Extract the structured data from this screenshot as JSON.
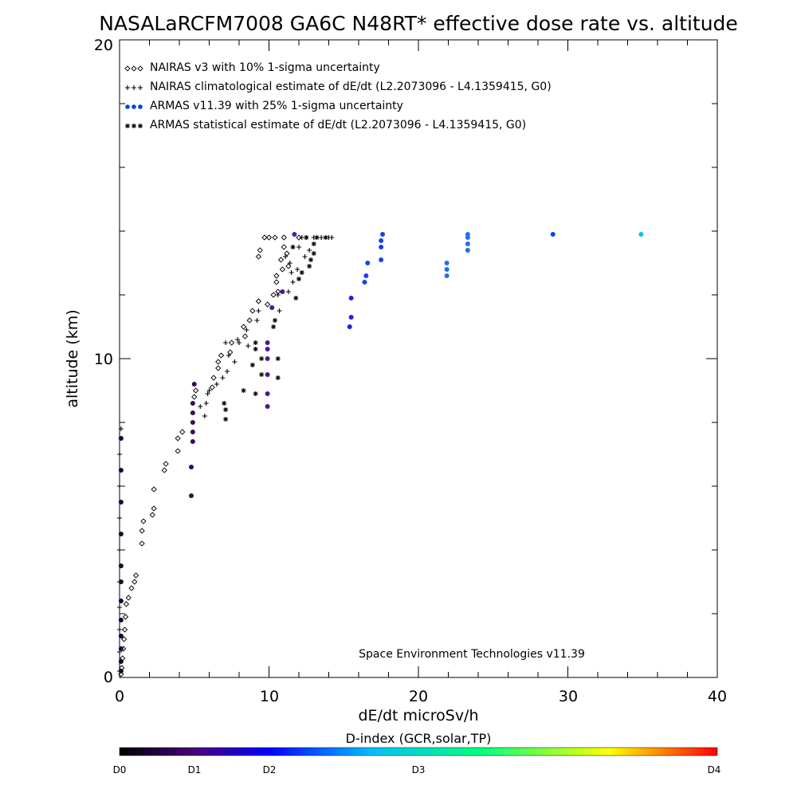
{
  "chart_data": {
    "type": "scatter",
    "title": "NASALaRCFM7008  GA6C N48RT* effective dose rate vs. altitude",
    "xlabel": "dE/dt microSv/h",
    "ylabel": "altitude (km)",
    "xlim": [
      0,
      40
    ],
    "ylim": [
      0,
      20
    ],
    "x_ticks": [
      "0",
      "10",
      "20",
      "30",
      "40"
    ],
    "y_ticks": [
      "0",
      "10",
      "20"
    ],
    "legend_position": "top-left",
    "credit": "Space Environment Technologies v11.39",
    "series": [
      {
        "name": "NAIRAS v3 with 10% 1-sigma uncertainty",
        "marker": "diamond",
        "color": "#000000",
        "points": [
          [
            0.1,
            0.1
          ],
          [
            0.15,
            0.3
          ],
          [
            0.2,
            0.6
          ],
          [
            0.25,
            0.9
          ],
          [
            0.3,
            1.2
          ],
          [
            0.35,
            1.5
          ],
          [
            0.4,
            1.9
          ],
          [
            0.45,
            2.3
          ],
          [
            0.6,
            2.5
          ],
          [
            0.8,
            2.8
          ],
          [
            1.0,
            3.0
          ],
          [
            1.1,
            3.2
          ],
          [
            1.5,
            4.2
          ],
          [
            1.5,
            4.6
          ],
          [
            1.6,
            4.9
          ],
          [
            2.2,
            5.1
          ],
          [
            2.3,
            5.3
          ],
          [
            2.3,
            5.9
          ],
          [
            3.0,
            6.5
          ],
          [
            3.1,
            6.7
          ],
          [
            3.9,
            7.1
          ],
          [
            3.9,
            7.5
          ],
          [
            4.2,
            7.7
          ],
          [
            5.0,
            8.8
          ],
          [
            5.1,
            9.0
          ],
          [
            6.2,
            9.1
          ],
          [
            6.3,
            9.4
          ],
          [
            6.6,
            9.7
          ],
          [
            6.6,
            9.9
          ],
          [
            6.8,
            10.1
          ],
          [
            7.4,
            10.2
          ],
          [
            7.5,
            10.5
          ],
          [
            8.4,
            10.7
          ],
          [
            8.3,
            11.0
          ],
          [
            8.7,
            11.2
          ],
          [
            8.9,
            11.5
          ],
          [
            9.3,
            11.8
          ],
          [
            9.9,
            11.7
          ],
          [
            10.3,
            12.0
          ],
          [
            10.6,
            12.1
          ],
          [
            10.5,
            12.4
          ],
          [
            10.5,
            12.6
          ],
          [
            10.9,
            12.8
          ],
          [
            11.3,
            12.9
          ],
          [
            10.8,
            13.1
          ],
          [
            9.3,
            13.2
          ],
          [
            9.4,
            13.4
          ],
          [
            9.7,
            13.8
          ],
          [
            10.0,
            13.8
          ],
          [
            10.4,
            13.8
          ],
          [
            11.0,
            13.8
          ],
          [
            12.0,
            13.8
          ],
          [
            11.0,
            13.5
          ],
          [
            11.2,
            13.3
          ]
        ]
      },
      {
        "name": "NAIRAS climatological estimate of dE/dt (L2.2073096 - L4.1359415, G0)",
        "marker": "plus",
        "color": "#000000",
        "points": [
          [
            0.0,
            0.2
          ],
          [
            0.0,
            0.8
          ],
          [
            0.0,
            1.5
          ],
          [
            0.0,
            2.2
          ],
          [
            0.0,
            3.0
          ],
          [
            0.0,
            4.0
          ],
          [
            0.0,
            5.0
          ],
          [
            0.0,
            6.0
          ],
          [
            0.0,
            7.0
          ],
          [
            0.1,
            7.8
          ],
          [
            5.4,
            8.5
          ],
          [
            5.7,
            8.2
          ],
          [
            5.8,
            8.6
          ],
          [
            5.9,
            8.9
          ],
          [
            6.0,
            9.0
          ],
          [
            6.5,
            9.2
          ],
          [
            6.9,
            9.4
          ],
          [
            7.2,
            9.6
          ],
          [
            7.7,
            9.9
          ],
          [
            7.3,
            10.1
          ],
          [
            7.1,
            10.5
          ],
          [
            7.9,
            10.6
          ],
          [
            8.0,
            10.5
          ],
          [
            8.6,
            10.4
          ],
          [
            8.5,
            10.9
          ],
          [
            9.2,
            11.2
          ],
          [
            9.3,
            11.5
          ],
          [
            10.7,
            11.5
          ],
          [
            10.6,
            12.0
          ],
          [
            11.3,
            12.1
          ],
          [
            11.6,
            12.4
          ],
          [
            11.5,
            12.7
          ],
          [
            11.9,
            12.8
          ],
          [
            11.4,
            13.0
          ],
          [
            11.1,
            13.2
          ],
          [
            12.4,
            13.2
          ],
          [
            12.7,
            13.4
          ],
          [
            12.0,
            13.5
          ],
          [
            12.2,
            13.8
          ],
          [
            12.5,
            13.8
          ],
          [
            13.0,
            13.8
          ],
          [
            13.5,
            13.8
          ],
          [
            14.0,
            13.8
          ],
          [
            14.2,
            13.8
          ]
        ]
      },
      {
        "name": "ARMAS v11.39 with 25% 1-sigma uncertainty",
        "marker": "dot",
        "color": "#0044dd",
        "points": [
          [
            0.1,
            0.2
          ],
          [
            0.1,
            0.5
          ],
          [
            0.1,
            0.9
          ],
          [
            0.1,
            1.3
          ],
          [
            0.1,
            1.8
          ],
          [
            0.1,
            2.4
          ],
          [
            0.1,
            3.0
          ],
          [
            0.1,
            3.5
          ],
          [
            0.1,
            4.5
          ],
          [
            0.1,
            5.5
          ],
          [
            0.1,
            6.5
          ],
          [
            0.1,
            7.5
          ],
          [
            4.8,
            5.7
          ],
          [
            4.8,
            6.6
          ],
          [
            4.9,
            7.4
          ],
          [
            4.9,
            7.7
          ],
          [
            4.9,
            8.0
          ],
          [
            4.9,
            8.3
          ],
          [
            4.9,
            8.6
          ],
          [
            5.0,
            9.2
          ],
          [
            9.9,
            8.5
          ],
          [
            9.9,
            8.9
          ],
          [
            9.9,
            9.5
          ],
          [
            9.9,
            10.0
          ],
          [
            9.9,
            10.3
          ],
          [
            9.9,
            10.5
          ],
          [
            10.2,
            11.6
          ],
          [
            10.9,
            12.1
          ],
          [
            11.7,
            13.9
          ],
          [
            15.4,
            11.0
          ],
          [
            15.5,
            11.3
          ],
          [
            15.5,
            11.9
          ],
          [
            16.4,
            12.4
          ],
          [
            16.5,
            12.6
          ],
          [
            16.6,
            13.0
          ],
          [
            17.5,
            13.1
          ],
          [
            17.5,
            13.5
          ],
          [
            17.5,
            13.7
          ],
          [
            17.6,
            13.9
          ],
          [
            21.9,
            12.6
          ],
          [
            21.9,
            12.8
          ],
          [
            21.9,
            13.0
          ],
          [
            23.3,
            13.4
          ],
          [
            23.3,
            13.6
          ],
          [
            23.3,
            13.8
          ],
          [
            23.3,
            13.9
          ],
          [
            29.0,
            13.9
          ],
          [
            34.9,
            13.9
          ]
        ]
      },
      {
        "name": "ARMAS statistical estimate of dE/dt (L2.2073096 - L4.1359415, G0)",
        "marker": "star",
        "color": "#000000",
        "points": [
          [
            7.1,
            8.1
          ],
          [
            7.1,
            8.4
          ],
          [
            7.0,
            8.6
          ],
          [
            8.3,
            9.0
          ],
          [
            9.1,
            8.9
          ],
          [
            9.5,
            9.5
          ],
          [
            8.9,
            9.8
          ],
          [
            9.5,
            10.0
          ],
          [
            9.1,
            10.3
          ],
          [
            9.1,
            10.5
          ],
          [
            10.6,
            9.4
          ],
          [
            10.6,
            10.0
          ],
          [
            10.3,
            11.0
          ],
          [
            10.4,
            11.2
          ],
          [
            11.8,
            11.9
          ],
          [
            12.0,
            12.5
          ],
          [
            12.2,
            12.7
          ],
          [
            12.7,
            12.9
          ],
          [
            12.8,
            13.1
          ],
          [
            13.0,
            13.3
          ],
          [
            13.0,
            13.6
          ],
          [
            11.6,
            13.5
          ],
          [
            12.5,
            13.8
          ],
          [
            13.2,
            13.8
          ],
          [
            13.8,
            13.8
          ]
        ]
      }
    ],
    "colorbar": {
      "label": "D-index (GCR,solar,TP)",
      "ticks": [
        {
          "label": "D0",
          "pos": 0.0
        },
        {
          "label": "D1",
          "pos": 0.125
        },
        {
          "label": "D2",
          "pos": 0.25
        },
        {
          "label": "D3",
          "pos": 0.5
        },
        {
          "label": "D4",
          "pos": 1.0
        }
      ],
      "stops": [
        "#000000",
        "#4b0082",
        "#0000ff",
        "#00bfff",
        "#00ff80",
        "#ffff00",
        "#ff0000"
      ]
    }
  }
}
